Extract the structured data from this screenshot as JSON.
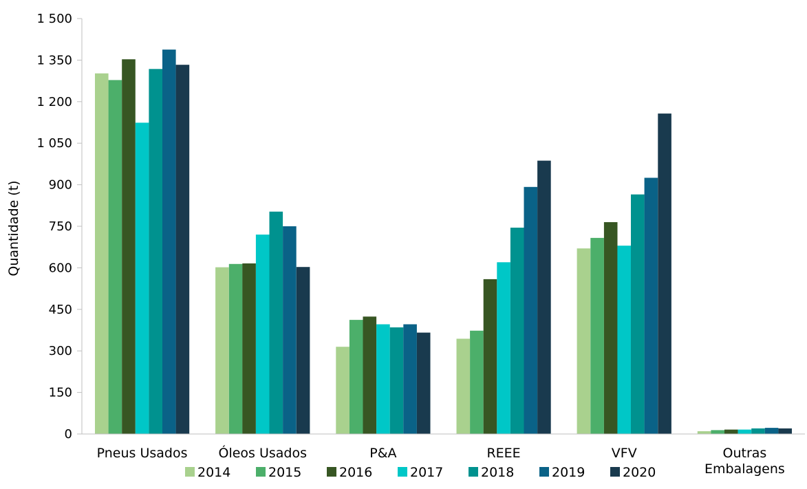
{
  "chart_data": {
    "type": "bar",
    "ylabel": "Quantidade (t)",
    "ylim": [
      0,
      1500
    ],
    "yticks": [
      "0",
      "150",
      "300",
      "450",
      "600",
      "750",
      "900",
      "1 050",
      "1 200",
      "1 350",
      "1 500"
    ],
    "ytick_values": [
      0,
      150,
      300,
      450,
      600,
      750,
      900,
      1050,
      1200,
      1350,
      1500
    ],
    "grid": false,
    "legend_position": "bottom",
    "categories": [
      [
        "Pneus Usados"
      ],
      [
        "Óleos Usados"
      ],
      [
        "P&A"
      ],
      [
        "REEE"
      ],
      [
        "VFV"
      ],
      [
        "Outras",
        "Embalagens"
      ]
    ],
    "series": [
      {
        "name": "2014",
        "color": "#a9d18e",
        "values": [
          1302,
          602,
          315,
          344,
          670,
          10
        ]
      },
      {
        "name": "2015",
        "color": "#4caf6a",
        "values": [
          1278,
          614,
          412,
          373,
          708,
          14
        ]
      },
      {
        "name": "2016",
        "color": "#375623",
        "values": [
          1353,
          616,
          424,
          559,
          765,
          16
        ]
      },
      {
        "name": "2017",
        "color": "#00c7c7",
        "values": [
          1124,
          720,
          396,
          620,
          680,
          16
        ]
      },
      {
        "name": "2018",
        "color": "#00928f",
        "values": [
          1318,
          803,
          385,
          745,
          865,
          20
        ]
      },
      {
        "name": "2019",
        "color": "#0a6287",
        "values": [
          1388,
          750,
          396,
          892,
          925,
          22
        ]
      },
      {
        "name": "2020",
        "color": "#193a4e",
        "values": [
          1333,
          603,
          366,
          987,
          1157,
          20
        ]
      }
    ]
  }
}
